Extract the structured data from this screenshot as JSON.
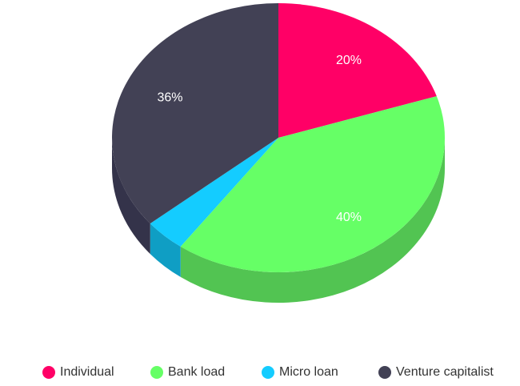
{
  "chart_data": {
    "type": "pie",
    "style": "3d",
    "title": "",
    "categories": [
      "Individual",
      "Bank load",
      "Micro loan",
      "Venture capitalist"
    ],
    "values": [
      20,
      40,
      4,
      36
    ],
    "data_labels": [
      "20%",
      "40%",
      "",
      "36%"
    ],
    "colors": [
      "#ff0066",
      "#66ff66",
      "#14ccff",
      "#424155"
    ],
    "side_colors": [
      "#cc0052",
      "#52c452",
      "#0f9ec4",
      "#34334a"
    ],
    "legend_position": "bottom",
    "start_angle_deg": 0,
    "direction": "clockwise"
  }
}
